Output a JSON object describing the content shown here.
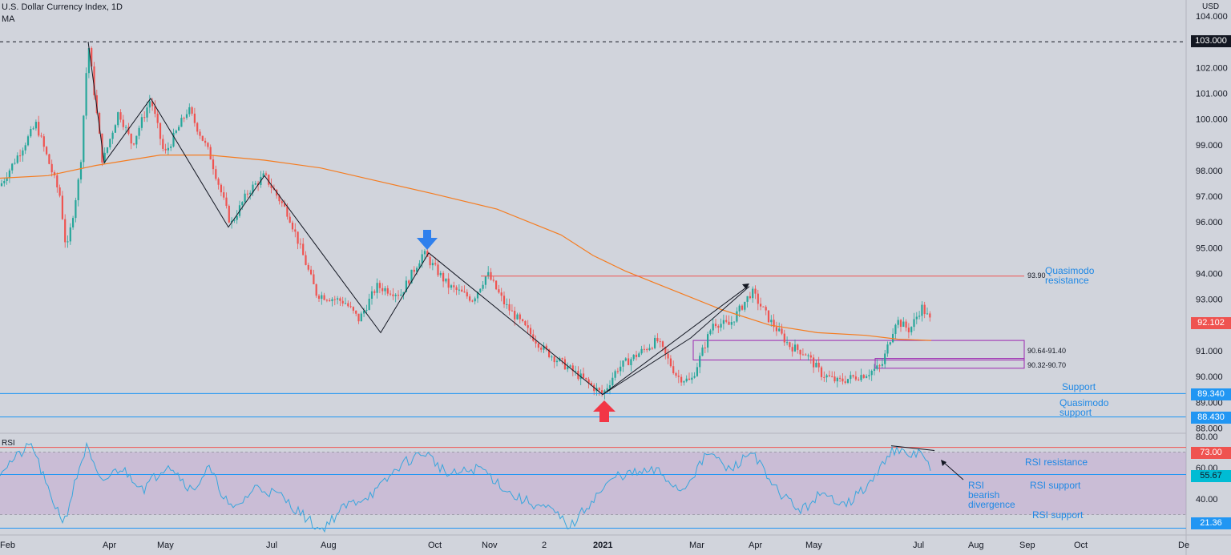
{
  "header": {
    "title": "U.S. Dollar Currency Index, 1D",
    "indicator": "MA",
    "currency": "USD"
  },
  "chart_data": [
    {
      "type": "candlestick",
      "title": "U.S. Dollar Currency Index, 1D",
      "x_ticks": [
        "Feb",
        "Apr",
        "May",
        "Jul",
        "Aug",
        "Oct",
        "Nov",
        "2",
        "2021",
        "Mar",
        "Apr",
        "May",
        "Jul",
        "Aug",
        "Sep",
        "Oct",
        "De"
      ],
      "y_ticks": [
        "104.000",
        "103.000",
        "102.000",
        "101.000",
        "100.000",
        "99.000",
        "98.000",
        "97.000",
        "96.000",
        "95.000",
        "94.000",
        "93.000",
        "92.000",
        "91.000",
        "90.000",
        "89.000",
        "88.000"
      ],
      "ylim": [
        88,
        104
      ],
      "price_labels": {
        "top": "103.000",
        "last": "92.102",
        "support": "89.340",
        "qm_support": "88.430"
      },
      "zones": [
        {
          "label": "90.64-91.40",
          "low": 90.64,
          "high": 91.4
        },
        {
          "label": "90.32-90.70",
          "low": 90.32,
          "high": 90.7
        }
      ],
      "levels": [
        {
          "label": "93.90",
          "value": 93.9
        },
        {
          "value": 103.0
        },
        {
          "value": 89.34
        },
        {
          "value": 88.43
        }
      ],
      "annotations": {
        "qm_resistance": [
          "Quasimodo",
          "resistance"
        ],
        "support": "Support",
        "qm_support": [
          "Quasimodo",
          "support"
        ]
      },
      "colors": {
        "up": "#26a69a",
        "down": "#ef5350",
        "ma": "#f57c20",
        "levels": "#2196f3",
        "zone": "#9c27b0",
        "red_arrow": "#f23645",
        "blue_arrow": "#2f80ed"
      }
    },
    {
      "type": "line",
      "title": "RSI",
      "y_ticks": [
        "80.00",
        "60.00",
        "40.00"
      ],
      "ylim": [
        17,
        82
      ],
      "levels": {
        "resistance": "73.00",
        "support_mid": "55.67",
        "support_low": "21.36"
      },
      "annotations": {
        "resistance": "RSI resistance",
        "support1": "RSI support",
        "support2": "RSI support",
        "divergence": [
          "RSI",
          "bearish",
          "divergence"
        ]
      }
    }
  ]
}
